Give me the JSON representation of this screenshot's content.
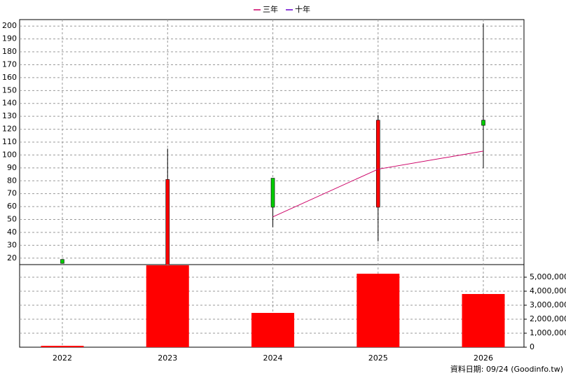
{
  "chart_data": [
    {
      "type": "candlestick",
      "categories": [
        "2022",
        "2023",
        "2024",
        "2025",
        "2026"
      ],
      "open": [
        19,
        14,
        82,
        59.5,
        127
      ],
      "high": [
        19,
        105,
        82,
        131,
        202
      ],
      "low": [
        16,
        14,
        44,
        33,
        90
      ],
      "close": [
        16,
        81,
        59.5,
        127,
        123
      ],
      "up_color": "#ff0000",
      "down_color": "#00cc00",
      "series": [
        {
          "name": "三年",
          "color": "#cc0066",
          "values": [
            null,
            null,
            52,
            89,
            103
          ]
        },
        {
          "name": "十年",
          "color": "#6600cc",
          "values": [
            null,
            null,
            null,
            null,
            null
          ]
        }
      ],
      "ylim": [
        15,
        205
      ],
      "yticks": [
        20,
        30,
        40,
        50,
        60,
        70,
        80,
        90,
        100,
        110,
        120,
        130,
        140,
        150,
        160,
        170,
        180,
        190,
        200
      ],
      "grid": true,
      "legend": "top"
    },
    {
      "type": "bar",
      "color": "#ff0000",
      "values": [
        100000,
        5850000,
        2450000,
        5250000,
        3800000
      ],
      "ylim": [
        0,
        5900000
      ],
      "yticks": [
        0,
        {
          "value": 1000000,
          "label": "1,000,000"
        },
        {
          "value": 2000000,
          "label": "2,000,000"
        },
        {
          "value": 3000000,
          "label": "3,000,000"
        },
        {
          "value": 4000000,
          "label": "4,000,000"
        },
        {
          "value": 5000000,
          "label": "5,000,000"
        }
      ],
      "grid": true
    }
  ],
  "footer": "資料日期: 09/24  (Goodinfo.tw)"
}
